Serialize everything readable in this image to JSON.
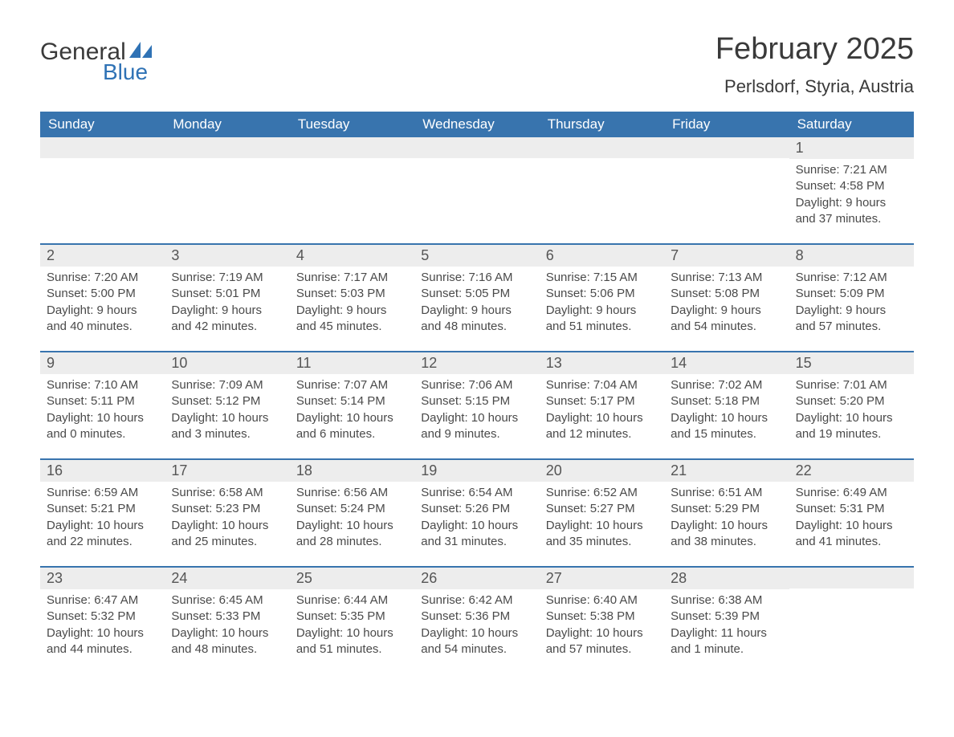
{
  "brand": {
    "word1": "General",
    "word2": "Blue",
    "accent_color": "#2f72b5",
    "shape_color": "#2f72b5"
  },
  "title": {
    "month_year": "February 2025",
    "location": "Perlsdorf, Styria, Austria",
    "title_fontsize": 38,
    "location_fontsize": 22,
    "text_color": "#3a3a3a"
  },
  "calendar": {
    "header_bg": "#3874ae",
    "header_text_color": "#ffffff",
    "row_divider_color": "#3874ae",
    "daynum_bg": "#ededed",
    "body_text_color": "#4a4a4a",
    "weekdays": [
      "Sunday",
      "Monday",
      "Tuesday",
      "Wednesday",
      "Thursday",
      "Friday",
      "Saturday"
    ],
    "weeks": [
      [
        {
          "day": "",
          "sunrise": "",
          "sunset": "",
          "daylight": ""
        },
        {
          "day": "",
          "sunrise": "",
          "sunset": "",
          "daylight": ""
        },
        {
          "day": "",
          "sunrise": "",
          "sunset": "",
          "daylight": ""
        },
        {
          "day": "",
          "sunrise": "",
          "sunset": "",
          "daylight": ""
        },
        {
          "day": "",
          "sunrise": "",
          "sunset": "",
          "daylight": ""
        },
        {
          "day": "",
          "sunrise": "",
          "sunset": "",
          "daylight": ""
        },
        {
          "day": "1",
          "sunrise": "Sunrise: 7:21 AM",
          "sunset": "Sunset: 4:58 PM",
          "daylight": "Daylight: 9 hours and 37 minutes."
        }
      ],
      [
        {
          "day": "2",
          "sunrise": "Sunrise: 7:20 AM",
          "sunset": "Sunset: 5:00 PM",
          "daylight": "Daylight: 9 hours and 40 minutes."
        },
        {
          "day": "3",
          "sunrise": "Sunrise: 7:19 AM",
          "sunset": "Sunset: 5:01 PM",
          "daylight": "Daylight: 9 hours and 42 minutes."
        },
        {
          "day": "4",
          "sunrise": "Sunrise: 7:17 AM",
          "sunset": "Sunset: 5:03 PM",
          "daylight": "Daylight: 9 hours and 45 minutes."
        },
        {
          "day": "5",
          "sunrise": "Sunrise: 7:16 AM",
          "sunset": "Sunset: 5:05 PM",
          "daylight": "Daylight: 9 hours and 48 minutes."
        },
        {
          "day": "6",
          "sunrise": "Sunrise: 7:15 AM",
          "sunset": "Sunset: 5:06 PM",
          "daylight": "Daylight: 9 hours and 51 minutes."
        },
        {
          "day": "7",
          "sunrise": "Sunrise: 7:13 AM",
          "sunset": "Sunset: 5:08 PM",
          "daylight": "Daylight: 9 hours and 54 minutes."
        },
        {
          "day": "8",
          "sunrise": "Sunrise: 7:12 AM",
          "sunset": "Sunset: 5:09 PM",
          "daylight": "Daylight: 9 hours and 57 minutes."
        }
      ],
      [
        {
          "day": "9",
          "sunrise": "Sunrise: 7:10 AM",
          "sunset": "Sunset: 5:11 PM",
          "daylight": "Daylight: 10 hours and 0 minutes."
        },
        {
          "day": "10",
          "sunrise": "Sunrise: 7:09 AM",
          "sunset": "Sunset: 5:12 PM",
          "daylight": "Daylight: 10 hours and 3 minutes."
        },
        {
          "day": "11",
          "sunrise": "Sunrise: 7:07 AM",
          "sunset": "Sunset: 5:14 PM",
          "daylight": "Daylight: 10 hours and 6 minutes."
        },
        {
          "day": "12",
          "sunrise": "Sunrise: 7:06 AM",
          "sunset": "Sunset: 5:15 PM",
          "daylight": "Daylight: 10 hours and 9 minutes."
        },
        {
          "day": "13",
          "sunrise": "Sunrise: 7:04 AM",
          "sunset": "Sunset: 5:17 PM",
          "daylight": "Daylight: 10 hours and 12 minutes."
        },
        {
          "day": "14",
          "sunrise": "Sunrise: 7:02 AM",
          "sunset": "Sunset: 5:18 PM",
          "daylight": "Daylight: 10 hours and 15 minutes."
        },
        {
          "day": "15",
          "sunrise": "Sunrise: 7:01 AM",
          "sunset": "Sunset: 5:20 PM",
          "daylight": "Daylight: 10 hours and 19 minutes."
        }
      ],
      [
        {
          "day": "16",
          "sunrise": "Sunrise: 6:59 AM",
          "sunset": "Sunset: 5:21 PM",
          "daylight": "Daylight: 10 hours and 22 minutes."
        },
        {
          "day": "17",
          "sunrise": "Sunrise: 6:58 AM",
          "sunset": "Sunset: 5:23 PM",
          "daylight": "Daylight: 10 hours and 25 minutes."
        },
        {
          "day": "18",
          "sunrise": "Sunrise: 6:56 AM",
          "sunset": "Sunset: 5:24 PM",
          "daylight": "Daylight: 10 hours and 28 minutes."
        },
        {
          "day": "19",
          "sunrise": "Sunrise: 6:54 AM",
          "sunset": "Sunset: 5:26 PM",
          "daylight": "Daylight: 10 hours and 31 minutes."
        },
        {
          "day": "20",
          "sunrise": "Sunrise: 6:52 AM",
          "sunset": "Sunset: 5:27 PM",
          "daylight": "Daylight: 10 hours and 35 minutes."
        },
        {
          "day": "21",
          "sunrise": "Sunrise: 6:51 AM",
          "sunset": "Sunset: 5:29 PM",
          "daylight": "Daylight: 10 hours and 38 minutes."
        },
        {
          "day": "22",
          "sunrise": "Sunrise: 6:49 AM",
          "sunset": "Sunset: 5:31 PM",
          "daylight": "Daylight: 10 hours and 41 minutes."
        }
      ],
      [
        {
          "day": "23",
          "sunrise": "Sunrise: 6:47 AM",
          "sunset": "Sunset: 5:32 PM",
          "daylight": "Daylight: 10 hours and 44 minutes."
        },
        {
          "day": "24",
          "sunrise": "Sunrise: 6:45 AM",
          "sunset": "Sunset: 5:33 PM",
          "daylight": "Daylight: 10 hours and 48 minutes."
        },
        {
          "day": "25",
          "sunrise": "Sunrise: 6:44 AM",
          "sunset": "Sunset: 5:35 PM",
          "daylight": "Daylight: 10 hours and 51 minutes."
        },
        {
          "day": "26",
          "sunrise": "Sunrise: 6:42 AM",
          "sunset": "Sunset: 5:36 PM",
          "daylight": "Daylight: 10 hours and 54 minutes."
        },
        {
          "day": "27",
          "sunrise": "Sunrise: 6:40 AM",
          "sunset": "Sunset: 5:38 PM",
          "daylight": "Daylight: 10 hours and 57 minutes."
        },
        {
          "day": "28",
          "sunrise": "Sunrise: 6:38 AM",
          "sunset": "Sunset: 5:39 PM",
          "daylight": "Daylight: 11 hours and 1 minute."
        },
        {
          "day": "",
          "sunrise": "",
          "sunset": "",
          "daylight": ""
        }
      ]
    ]
  }
}
